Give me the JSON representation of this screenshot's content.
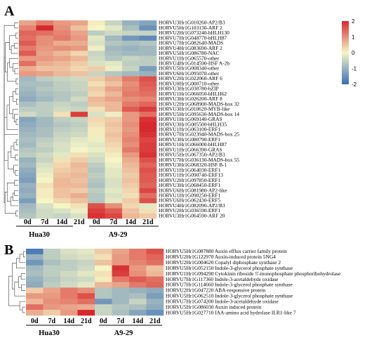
{
  "panels": [
    {
      "letter": "A",
      "group_labels": [
        "Hua30",
        "A9-29"
      ],
      "columns": [
        "0d",
        "7d",
        "14d",
        "21d",
        "0d",
        "7d",
        "14d",
        "21d"
      ],
      "chart_data": {
        "type": "heatmap",
        "columns": [
          "0d",
          "7d",
          "14d",
          "21d",
          "0d",
          "7d",
          "14d",
          "21d"
        ],
        "column_groups": [
          {
            "name": "Hua30",
            "columns": [
              0,
              1,
              2,
              3
            ]
          },
          {
            "name": "A9-29",
            "columns": [
              4,
              5,
              6,
              7
            ]
          }
        ],
        "rows": [
          "HORVU3Hr1G010260-AP2/B3",
          "HORVU5Hr1G103130-ARF 2",
          "HORVU2Hr1G073240-bHLH130",
          "HORVU7Hr1G048770-bHLH87",
          "HORVU7Hr1G082640-MADS",
          "HORVU4Hr1G083690-ARF 2",
          "HORVU5Hr1G086780-NAC",
          "HORVU1Hr1G065570-other",
          "HORVU4Hr1G014590-HSF A-2b",
          "HORVU5Hr1G008340-other",
          "HORVU6Hr1G095070-other",
          "HORVU2Hr1G022060-ARF 6",
          "HORVU0Hr1G000710-other",
          "HORVU3Hr1G030780-bZIP",
          "HORVU1Hr1G066050-bHLH62",
          "HORVU3Hr1G026200-ARF 8",
          "HORVU2Hr1G068900-MADS-box 32",
          "HORVU3Hr1G010620-MYB-like",
          "HORVU5Hr1G095630-MADS-box 14",
          "HORVU1Hr1G069140-GRAS",
          "HORVU3Hr1G005500-bHLH35",
          "HORVU1Hr1G063100-ERF1",
          "HORVU7Hr1G023940-MADS-box 25",
          "HORVU3Hr1G080790-ERF1",
          "HORVU1Hr1G066000-bHLH87",
          "HORVU1Hr1G066390-GRAS",
          "HORVU5Hr1G067350-AP2/B3",
          "HORVU7Hr1G036130-MADS-box 55",
          "HORVU3Hr1G068320-HSF B-1",
          "HORVU1Hr1G064030-ERF1",
          "HORVU1Hr1G090740-ERF13",
          "HORVU2Hr1G097850-ERF1",
          "HORVU3Hr1G068450-ERF1",
          "HORVU6Hr1G081980-AP2-like",
          "HORVU1Hr1G090250-ERF1",
          "HORVU6Hr1G062430-ERF5",
          "HORVU4Hr1G082090-AP2/B3",
          "HORVU2Hr1G036590-ERF1",
          "HORVU3Hr1G064590-ARF 20"
        ],
        "values": [
          [
            0.8,
            1.2,
            0.9,
            0.8,
            0.1,
            -0.5,
            -1.0,
            -1.2
          ],
          [
            1.1,
            2.2,
            1.0,
            0.5,
            0.0,
            -0.2,
            -0.8,
            -1.5
          ],
          [
            1.4,
            1.3,
            1.1,
            0.8,
            -0.6,
            -0.4,
            -0.5,
            -0.5
          ],
          [
            1.3,
            1.0,
            1.2,
            0.9,
            -0.2,
            -0.9,
            -1.4,
            -1.6
          ],
          [
            1.5,
            1.0,
            0.7,
            0.7,
            -0.3,
            -0.7,
            -0.8,
            -0.7
          ],
          [
            1.2,
            0.9,
            1.0,
            0.9,
            -0.1,
            -0.9,
            -1.0,
            -0.9
          ],
          [
            1.5,
            0.8,
            0.6,
            0.3,
            -0.5,
            -0.8,
            -0.9,
            -0.9
          ],
          [
            0.9,
            0.9,
            0.8,
            0.6,
            -0.4,
            -0.7,
            -0.5,
            -0.6
          ],
          [
            1.3,
            0.7,
            0.6,
            0.4,
            -0.3,
            -0.2,
            -0.6,
            -0.6
          ],
          [
            0.7,
            0.5,
            0.5,
            0.3,
            0.4,
            -0.1,
            -0.5,
            -1.3
          ],
          [
            0.9,
            0.8,
            0.6,
            0.5,
            -0.5,
            -0.7,
            -0.9,
            -1.0
          ],
          [
            -0.9,
            -0.6,
            -0.5,
            -0.4,
            0.4,
            0.7,
            1.2,
            1.6
          ],
          [
            -0.8,
            -0.8,
            -0.6,
            -0.5,
            0.2,
            0.5,
            1.0,
            1.5
          ],
          [
            -0.9,
            -0.7,
            -0.6,
            -0.5,
            0.4,
            0.8,
            1.1,
            1.4
          ],
          [
            -1.0,
            -0.8,
            -0.7,
            -0.6,
            0.3,
            0.6,
            1.2,
            1.3
          ],
          [
            -1.1,
            -0.9,
            -0.7,
            -0.4,
            0.6,
            0.8,
            1.0,
            1.1
          ],
          [
            -0.8,
            -0.6,
            -0.5,
            -0.6,
            0.5,
            0.6,
            1.2,
            1.4
          ],
          [
            -0.6,
            -0.6,
            -0.4,
            -0.5,
            0.2,
            0.6,
            1.5,
            1.8
          ],
          [
            -0.4,
            -0.6,
            0.2,
            1.8,
            -0.3,
            -0.1,
            0.9,
            1.3
          ],
          [
            -1.2,
            -0.9,
            -0.6,
            -0.5,
            0.3,
            0.4,
            0.9,
            1.9
          ],
          [
            -1.1,
            -0.9,
            -0.7,
            -0.6,
            0.2,
            0.5,
            1.0,
            2.0
          ],
          [
            -1.0,
            -0.8,
            -0.6,
            -0.5,
            0.1,
            0.4,
            0.9,
            2.1
          ],
          [
            -0.9,
            -0.8,
            -0.5,
            -0.4,
            0.1,
            0.5,
            1.0,
            1.9
          ],
          [
            -0.8,
            -0.6,
            -0.4,
            -0.2,
            -0.1,
            0.4,
            1.1,
            1.7
          ],
          [
            -0.9,
            -0.5,
            -0.3,
            -0.1,
            -0.2,
            0.3,
            1.0,
            1.8
          ],
          [
            -0.7,
            -0.6,
            -0.3,
            0.0,
            -0.1,
            0.2,
            1.2,
            1.8
          ],
          [
            -0.6,
            -0.4,
            -0.2,
            0.2,
            -0.3,
            0.1,
            0.9,
            1.9
          ],
          [
            -1.0,
            -0.5,
            0.2,
            0.4,
            -0.4,
            0.0,
            0.7,
            1.6
          ],
          [
            -0.9,
            -0.3,
            0.3,
            0.6,
            -0.6,
            -0.1,
            0.6,
            1.4
          ],
          [
            -1.1,
            -0.2,
            0.4,
            0.5,
            -0.7,
            -0.2,
            0.5,
            1.6
          ],
          [
            -1.2,
            -0.1,
            0.5,
            0.6,
            -0.6,
            -0.2,
            0.4,
            1.5
          ],
          [
            -1.3,
            0.0,
            0.6,
            0.5,
            -0.7,
            -0.3,
            0.5,
            1.5
          ],
          [
            -1.0,
            0.2,
            0.6,
            0.6,
            -0.8,
            -0.3,
            0.4,
            1.4
          ],
          [
            -1.1,
            0.1,
            0.5,
            0.4,
            -0.6,
            -0.2,
            0.3,
            1.7
          ],
          [
            -1.0,
            0.1,
            0.5,
            0.7,
            -0.7,
            -0.3,
            0.2,
            1.3
          ],
          [
            -1.3,
            0.0,
            0.3,
            0.5,
            -0.7,
            -0.2,
            0.4,
            1.6
          ],
          [
            -0.9,
            -0.3,
            0.0,
            0.2,
            1.6,
            1.0,
            0.3,
            -0.2
          ],
          [
            -0.8,
            -0.4,
            -0.3,
            -0.1,
            1.8,
            1.5,
            0.5,
            0.2
          ],
          [
            -0.7,
            -0.4,
            -0.5,
            -0.3,
            1.9,
            1.7,
            0.6,
            0.4
          ]
        ],
        "scale": {
          "min": -2,
          "max": 2,
          "ticks": [
            2,
            1,
            0,
            -1,
            -2
          ],
          "colors": [
            "#3b6fb6",
            "#f5f5c6",
            "#d7282c"
          ]
        }
      }
    },
    {
      "letter": "B",
      "group_labels": [
        "Hua30",
        "A9-29"
      ],
      "columns": [
        "0d",
        "7d",
        "14d",
        "21d",
        "0d",
        "7d",
        "14d",
        "21d"
      ],
      "chart_data": {
        "type": "heatmap",
        "columns": [
          "0d",
          "7d",
          "14d",
          "21d",
          "0d",
          "7d",
          "14d",
          "21d"
        ],
        "column_groups": [
          {
            "name": "Hua30",
            "columns": [
              0,
              1,
              2,
              3
            ]
          },
          {
            "name": "A9-29",
            "columns": [
              4,
              5,
              6,
              7
            ]
          }
        ],
        "rows": [
          "HORVU5Hr1G087880 Auxin efflux carrier family protein",
          "HORVU2Hr1G122970 Auxin-induced protein 5NG4",
          "HORVU2Hr1G004620 Copalyl diphosphate synthase 2",
          "HORVU5Hr1G052150 Indole-3-glycerol phosphate synthase",
          "HORVU1Hr1G094290 Cytokinin riboside 5'-monophosphate phosphoribohydrolase",
          "HORVU7Hr1G117360 Indole-3-acetaldehyde oxidase",
          "HORVU7Hr1G114660 Indole-3-glycerol phosphate synthase",
          "HORVU2Hr1G047220 ABA-responsive protein",
          "HORVU5Hr1G062510 Indole-3-glycerol phosphate synthase",
          "HORVU7Hr1G074200 Indole-3-acetaldehyde oxidase",
          "HORVU5Hr1G086030 Auxin induced protein",
          "HORVU5Hr1G027710 IAA-amino acid hydrolase ILR1-like 7"
        ],
        "values": [
          [
            -1.8,
            -0.6,
            -0.3,
            -0.2,
            0.4,
            0.8,
            1.2,
            1.6
          ],
          [
            -1.0,
            -0.6,
            -0.4,
            -0.3,
            0.2,
            0.9,
            1.2,
            1.4
          ],
          [
            -1.4,
            -0.8,
            -0.6,
            -0.5,
            0.5,
            0.9,
            1.1,
            1.3
          ],
          [
            -0.9,
            -0.6,
            -0.6,
            -0.4,
            0.0,
            1.9,
            0.9,
            0.5
          ],
          [
            -0.8,
            -0.6,
            -0.4,
            -0.2,
            0.2,
            1.8,
            1.0,
            0.6
          ],
          [
            -1.0,
            -0.7,
            -0.5,
            -0.4,
            0.1,
            1.2,
            1.5,
            1.3
          ],
          [
            -1.1,
            -0.6,
            -0.4,
            -0.2,
            0.6,
            0.8,
            1.2,
            1.4
          ],
          [
            0.4,
            0.8,
            1.2,
            1.0,
            -0.7,
            -0.9,
            -1.0,
            -1.1
          ],
          [
            0.9,
            0.9,
            1.2,
            1.6,
            -0.7,
            -0.9,
            -0.8,
            -1.3
          ],
          [
            0.6,
            1.0,
            1.1,
            1.3,
            -1.4,
            -0.9,
            -0.5,
            -1.0
          ],
          [
            1.3,
            0.9,
            0.8,
            0.7,
            -0.5,
            -0.7,
            -0.8,
            -1.1
          ],
          [
            0.7,
            0.4,
            0.9,
            2.0,
            -0.5,
            -0.8,
            -1.2,
            -1.5
          ]
        ]
      }
    }
  ]
}
